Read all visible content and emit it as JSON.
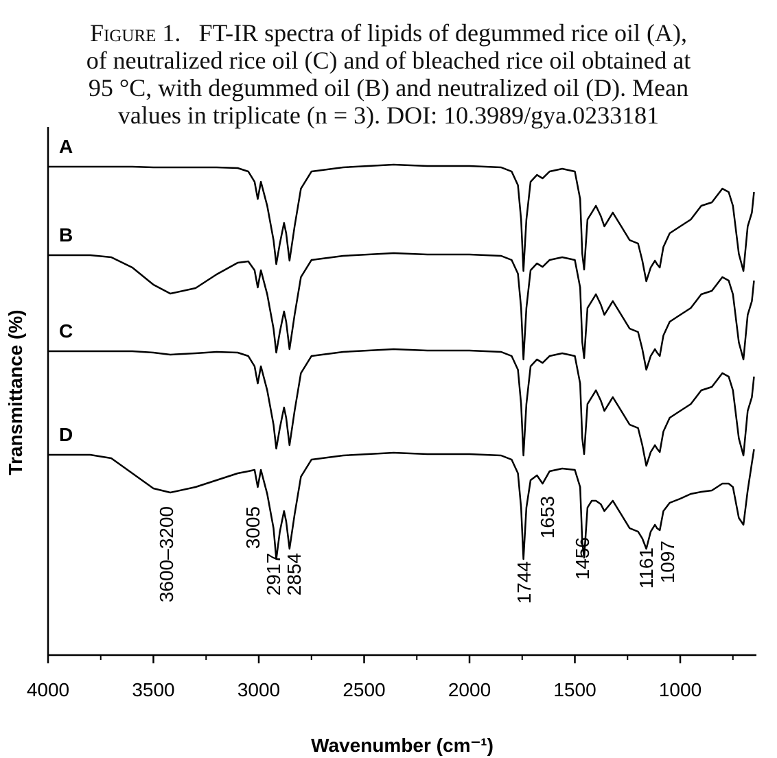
{
  "chart_data": {
    "type": "line",
    "title_label": "Figure 1.",
    "title_lines": [
      "FT-IR spectra of lipids of degummed rice oil (A),",
      "of neutralized rice oil (C) and of bleached rice oil obtained at",
      "95 °C, with degummed oil (B) and neutralized oil (D). Mean",
      "values in triplicate (n = 3). DOI: 10.3989/gya.0233181"
    ],
    "x_label": "Wavenumber (cm⁻¹)",
    "y_label": "Transmittance (%)",
    "xlim": [
      4000,
      645
    ],
    "ylim": [
      0,
      770
    ],
    "xticks": [
      4000,
      3500,
      3000,
      2500,
      2000,
      1500,
      1000
    ],
    "xminorticks": [
      3750,
      3250,
      2750,
      2250,
      1750,
      1250,
      750
    ],
    "x": [
      4000,
      3800,
      3700,
      3600,
      3500,
      3420,
      3300,
      3200,
      3100,
      3050,
      3020,
      3005,
      2990,
      2960,
      2930,
      2917,
      2900,
      2880,
      2870,
      2854,
      2830,
      2800,
      2750,
      2600,
      2360,
      2200,
      2000,
      1850,
      1800,
      1770,
      1755,
      1744,
      1730,
      1710,
      1680,
      1653,
      1620,
      1560,
      1500,
      1475,
      1465,
      1456,
      1440,
      1420,
      1400,
      1377,
      1360,
      1320,
      1280,
      1240,
      1200,
      1180,
      1161,
      1140,
      1120,
      1110,
      1097,
      1080,
      1050,
      1000,
      950,
      900,
      850,
      800,
      770,
      750,
      722,
      700,
      680,
      660,
      650
    ],
    "series": [
      {
        "name": "A",
        "color": "#000000",
        "values": [
          712,
          712,
          712,
          712,
          711,
          711,
          711,
          711,
          710,
          705,
          690,
          665,
          690,
          655,
          605,
          570,
          600,
          630,
          615,
          575,
          625,
          680,
          705,
          711,
          715,
          713,
          713,
          711,
          705,
          685,
          635,
          560,
          635,
          690,
          700,
          695,
          705,
          709,
          705,
          665,
          585,
          562,
          635,
          645,
          655,
          640,
          625,
          645,
          625,
          605,
          600,
          575,
          545,
          565,
          575,
          570,
          565,
          595,
          615,
          625,
          635,
          655,
          660,
          680,
          675,
          655,
          585,
          560,
          625,
          645,
          675
        ]
      },
      {
        "name": "B",
        "color": "#000000",
        "values": [
          583,
          583,
          580,
          565,
          540,
          527,
          535,
          555,
          572,
          574,
          561,
          536,
          561,
          526,
          476,
          441,
          471,
          501,
          486,
          446,
          496,
          551,
          576,
          582,
          586,
          584,
          584,
          582,
          576,
          556,
          506,
          431,
          506,
          561,
          571,
          566,
          576,
          580,
          576,
          536,
          456,
          433,
          506,
          516,
          526,
          511,
          496,
          516,
          496,
          476,
          471,
          446,
          416,
          436,
          446,
          441,
          436,
          466,
          486,
          496,
          506,
          526,
          531,
          551,
          546,
          526,
          456,
          431,
          496,
          516,
          546
        ]
      },
      {
        "name": "C",
        "color": "#000000",
        "values": [
          443,
          443,
          443,
          443,
          441,
          438,
          440,
          442,
          441,
          436,
          421,
          396,
          421,
          386,
          336,
          301,
          331,
          361,
          346,
          306,
          356,
          411,
          436,
          442,
          446,
          444,
          444,
          442,
          436,
          416,
          366,
          291,
          366,
          421,
          431,
          426,
          436,
          440,
          436,
          396,
          316,
          293,
          366,
          376,
          386,
          371,
          356,
          376,
          356,
          336,
          331,
          306,
          276,
          296,
          306,
          301,
          296,
          326,
          346,
          356,
          366,
          386,
          391,
          411,
          406,
          386,
          316,
          291,
          356,
          376,
          406
        ]
      },
      {
        "name": "D",
        "color": "#000000",
        "values": [
          292,
          292,
          287,
          265,
          243,
          237,
          245,
          255,
          265,
          268,
          270,
          245,
          270,
          235,
          185,
          140,
          180,
          210,
          195,
          155,
          205,
          260,
          285,
          291,
          295,
          293,
          293,
          291,
          285,
          265,
          215,
          140,
          215,
          255,
          262,
          250,
          268,
          272,
          270,
          245,
          165,
          142,
          215,
          225,
          225,
          220,
          210,
          225,
          205,
          185,
          180,
          170,
          155,
          180,
          190,
          185,
          182,
          210,
          222,
          228,
          235,
          238,
          240,
          250,
          250,
          245,
          200,
          190,
          240,
          280,
          300
        ]
      }
    ],
    "annotations": [
      "3600–3200",
      "3005",
      "2917",
      "2854",
      "1744",
      "1653",
      "1456",
      "1161",
      "1097"
    ]
  }
}
